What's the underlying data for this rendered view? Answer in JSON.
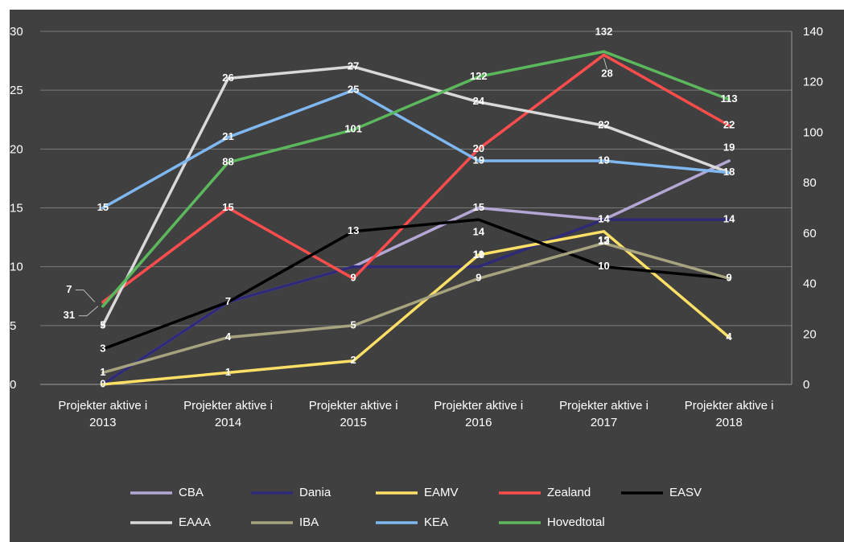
{
  "chart_data": {
    "type": "line",
    "categories": [
      [
        "Projekter aktive i",
        "2013"
      ],
      [
        "Projekter aktive i",
        "2014"
      ],
      [
        "Projekter aktive i",
        "2015"
      ],
      [
        "Projekter aktive i",
        "2016"
      ],
      [
        "Projekter aktive i",
        "2017"
      ],
      [
        "Projekter aktive i",
        "2018"
      ]
    ],
    "y_left": {
      "min": 0,
      "max": 30,
      "ticks": [
        "0",
        "5",
        "10",
        "15",
        "20",
        "25",
        "30"
      ]
    },
    "y_right": {
      "min": 0,
      "max": 140,
      "ticks": [
        "0",
        "20",
        "40",
        "60",
        "80",
        "100",
        "120",
        "140"
      ]
    },
    "grid": true,
    "legend_position": "bottom",
    "series": [
      {
        "name": "CBA",
        "color": "#b4a7d6",
        "axis": "left",
        "values": [
          0,
          7,
          10,
          15,
          14,
          19
        ]
      },
      {
        "name": "Dania",
        "color": "#2e2a78",
        "axis": "left",
        "values": [
          0,
          7,
          10,
          10,
          14,
          14
        ]
      },
      {
        "name": "EAMV",
        "color": "#ffe066",
        "axis": "left",
        "values": [
          0,
          1,
          2,
          11,
          13,
          4
        ]
      },
      {
        "name": "Zealand",
        "color": "#ff4d4d",
        "axis": "left",
        "values": [
          7,
          15,
          9,
          20,
          28,
          22
        ]
      },
      {
        "name": "EASV",
        "color": "#000000",
        "axis": "left",
        "values": [
          3,
          7,
          13,
          14,
          10,
          9
        ]
      },
      {
        "name": "EAAA",
        "color": "#d9d9d9",
        "axis": "left",
        "values": [
          5,
          26,
          27,
          24,
          22,
          18
        ]
      },
      {
        "name": "IBA",
        "color": "#a6a37e",
        "axis": "left",
        "values": [
          1,
          4,
          5,
          9,
          12,
          9
        ]
      },
      {
        "name": "KEA",
        "color": "#7fb8f0",
        "axis": "left",
        "values": [
          15,
          21,
          25,
          19,
          19,
          18
        ]
      },
      {
        "name": "Hovedtotal",
        "color": "#5cb85c",
        "axis": "right",
        "values": [
          31,
          88,
          101,
          122,
          132,
          113
        ]
      }
    ],
    "labels": [
      {
        "series": 0,
        "point": 3,
        "text": "15"
      },
      {
        "series": 0,
        "point": 4,
        "text": "14"
      },
      {
        "series": 0,
        "point": 5,
        "text": "19"
      },
      {
        "series": 1,
        "point": 1,
        "text": "7"
      },
      {
        "series": 1,
        "point": 3,
        "text": "10"
      },
      {
        "series": 1,
        "point": 4,
        "text": "14"
      },
      {
        "series": 1,
        "point": 5,
        "text": "14"
      },
      {
        "series": 2,
        "point": 0,
        "text": "0"
      },
      {
        "series": 2,
        "point": 1,
        "text": "1"
      },
      {
        "series": 2,
        "point": 2,
        "text": "2"
      },
      {
        "series": 2,
        "point": 3,
        "text": "11"
      },
      {
        "series": 2,
        "point": 4,
        "text": "13"
      },
      {
        "series": 2,
        "point": 5,
        "text": "4"
      },
      {
        "series": 3,
        "point": 0,
        "text": "7"
      },
      {
        "series": 3,
        "point": 1,
        "text": "15"
      },
      {
        "series": 3,
        "point": 2,
        "text": "9"
      },
      {
        "series": 3,
        "point": 3,
        "text": "20"
      },
      {
        "series": 3,
        "point": 4,
        "text": "28"
      },
      {
        "series": 3,
        "point": 5,
        "text": "22"
      },
      {
        "series": 4,
        "point": 0,
        "text": "3"
      },
      {
        "series": 4,
        "point": 2,
        "text": "13"
      },
      {
        "series": 4,
        "point": 3,
        "text": "14"
      },
      {
        "series": 4,
        "point": 4,
        "text": "10"
      },
      {
        "series": 4,
        "point": 5,
        "text": "9"
      },
      {
        "series": 5,
        "point": 0,
        "text": "5"
      },
      {
        "series": 5,
        "point": 1,
        "text": "26"
      },
      {
        "series": 5,
        "point": 2,
        "text": "27"
      },
      {
        "series": 5,
        "point": 3,
        "text": "24"
      },
      {
        "series": 5,
        "point": 4,
        "text": "22"
      },
      {
        "series": 5,
        "point": 5,
        "text": "18"
      },
      {
        "series": 6,
        "point": 0,
        "text": "1"
      },
      {
        "series": 6,
        "point": 1,
        "text": "4"
      },
      {
        "series": 6,
        "point": 2,
        "text": "5"
      },
      {
        "series": 6,
        "point": 3,
        "text": "9"
      },
      {
        "series": 6,
        "point": 4,
        "text": "12"
      },
      {
        "series": 7,
        "point": 0,
        "text": "15"
      },
      {
        "series": 7,
        "point": 1,
        "text": "21"
      },
      {
        "series": 7,
        "point": 2,
        "text": "25"
      },
      {
        "series": 7,
        "point": 3,
        "text": "19"
      },
      {
        "series": 7,
        "point": 4,
        "text": "19"
      },
      {
        "series": 8,
        "point": 0,
        "text": "31"
      },
      {
        "series": 8,
        "point": 1,
        "text": "88"
      },
      {
        "series": 8,
        "point": 2,
        "text": "101"
      },
      {
        "series": 8,
        "point": 3,
        "text": "122"
      },
      {
        "series": 8,
        "point": 4,
        "text": "132"
      },
      {
        "series": 8,
        "point": 5,
        "text": "113"
      }
    ]
  }
}
